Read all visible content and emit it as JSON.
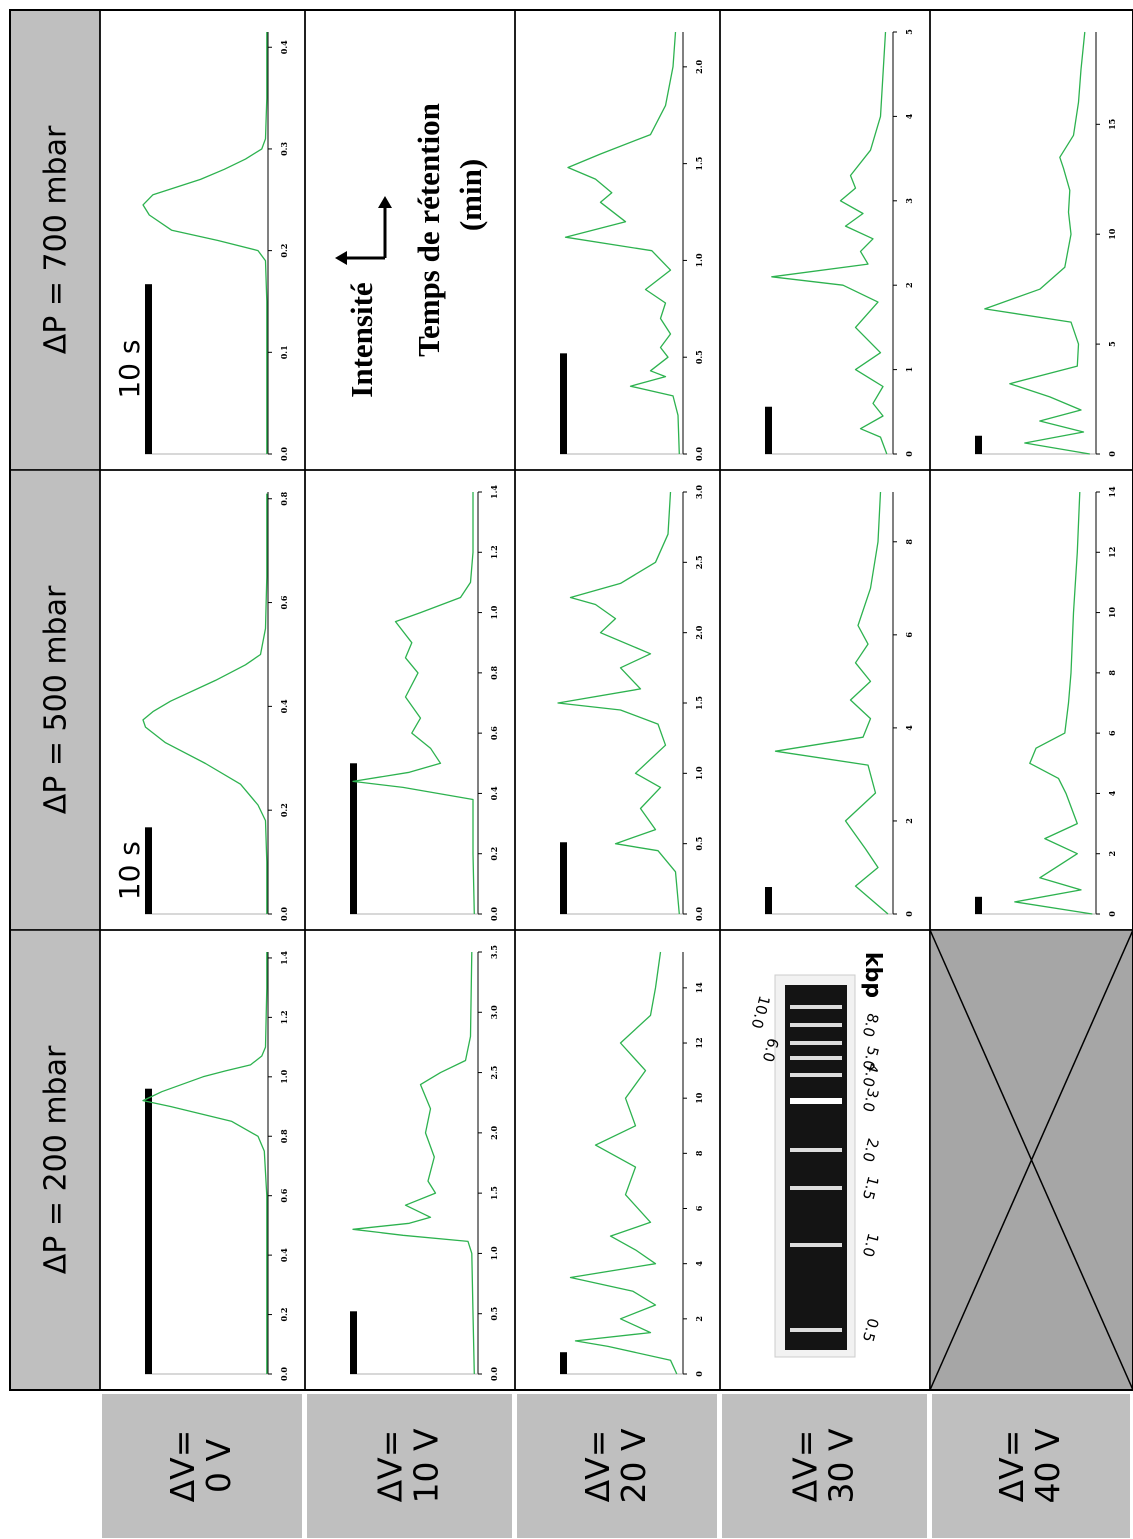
{
  "table": {
    "col_headers": [
      "ΔP = 700 mbar",
      "ΔP = 500 mbar",
      "ΔP = 200 mbar"
    ],
    "row_headers": [
      [
        "ΔV=",
        "0 V"
      ],
      [
        "ΔV=",
        "10 V"
      ],
      [
        "ΔV=",
        "20 V"
      ],
      [
        "ΔV=",
        "30 V"
      ],
      [
        "ΔV=",
        "40 V"
      ]
    ]
  },
  "legend_cell": {
    "intensity": "Intensité",
    "time": "Temps de rétention",
    "unit": "(min)"
  },
  "gel": {
    "unit": "kbp",
    "bands": [
      "0.5",
      "1.0",
      "1.5",
      "2.0",
      "3.0",
      "4.0",
      "5.0",
      "6.0",
      "8.0",
      "10.0"
    ]
  },
  "chart_data": [
    {
      "type": "line",
      "color": "#2db24f",
      "ylim": [
        0,
        100
      ],
      "xlim": [
        0,
        0.415
      ],
      "scale_bar": 0.167,
      "scale_label": "10 s",
      "xticks": [
        {
          "value": 0,
          "label": "0.0"
        },
        0.1,
        0.2,
        0.3,
        0.4
      ],
      "x": [
        0,
        0.05,
        0.1,
        0.15,
        0.19,
        0.2,
        0.21,
        0.22,
        0.235,
        0.245,
        0.255,
        0.27,
        0.28,
        0.29,
        0.3,
        0.31,
        0.35,
        0.4,
        0.415
      ],
      "values": [
        1,
        1,
        1,
        1,
        2,
        8,
        40,
        77,
        95,
        100,
        92,
        54,
        35,
        18,
        5,
        2,
        1,
        1,
        1
      ]
    },
    {
      "type": "line",
      "color": "#2db24f",
      "ylim": [
        0,
        100
      ],
      "xlim": [
        0,
        2.18
      ],
      "scale_bar": 0.52,
      "xticks": [
        {
          "value": 0,
          "label": "0.0"
        },
        0.5,
        {
          "value": 1,
          "label": "1.0"
        },
        1.5,
        {
          "value": 2,
          "label": "2.0"
        }
      ],
      "x": [
        0,
        0.2,
        0.3,
        0.35,
        0.4,
        0.43,
        0.5,
        0.55,
        0.62,
        0.7,
        0.78,
        0.85,
        0.95,
        1.05,
        1.12,
        1.2,
        1.3,
        1.35,
        1.42,
        1.48,
        1.55,
        1.65,
        1.8,
        2.0,
        2.18
      ],
      "values": [
        3,
        4,
        8,
        42,
        14,
        26,
        12,
        18,
        10,
        18,
        14,
        30,
        10,
        25,
        94,
        46,
        66,
        57,
        70,
        92,
        66,
        26,
        14,
        8,
        6
      ]
    },
    {
      "type": "line",
      "color": "#2db24f",
      "ylim": [
        0,
        100
      ],
      "xlim": [
        0,
        5
      ],
      "scale_bar": 0.56,
      "xticks": [
        0,
        1,
        2,
        3,
        4,
        5
      ],
      "x": [
        0,
        0.2,
        0.3,
        0.45,
        0.6,
        0.8,
        1.0,
        1.2,
        1.5,
        1.8,
        2.0,
        2.1,
        2.25,
        2.4,
        2.55,
        2.7,
        2.85,
        3.0,
        3.15,
        3.3,
        3.6,
        4.0,
        4.5,
        5.0
      ],
      "values": [
        5,
        10,
        26,
        8,
        16,
        8,
        30,
        10,
        30,
        12,
        40,
        97,
        20,
        26,
        16,
        38,
        24,
        42,
        30,
        34,
        18,
        10,
        8,
        6
      ]
    },
    {
      "type": "line",
      "color": "#2db24f",
      "ylim": [
        0,
        100
      ],
      "xlim": [
        0,
        19.2
      ],
      "scale_bar": 0.83,
      "xticks": [
        0,
        5,
        10,
        15
      ],
      "x": [
        0,
        0.5,
        1,
        1.5,
        2,
        2.6,
        3.2,
        4,
        5,
        6,
        6.6,
        7.5,
        8.5,
        10,
        11,
        12,
        13,
        13.5,
        14.5,
        16,
        17.5,
        19.2
      ],
      "values": [
        5,
        57,
        10,
        45,
        12,
        37,
        69,
        15,
        14,
        20,
        89,
        45,
        25,
        20,
        22,
        21,
        26,
        29,
        18,
        14,
        12,
        9
      ]
    },
    {
      "type": "line",
      "color": "#2db24f",
      "ylim": [
        0,
        100
      ],
      "xlim": [
        0,
        0.813
      ],
      "scale_bar": 0.167,
      "scale_label": "10 s",
      "xticks": [
        {
          "value": 0,
          "label": "0.0"
        },
        0.2,
        0.4,
        0.6,
        0.8
      ],
      "x": [
        0,
        0.1,
        0.18,
        0.21,
        0.25,
        0.29,
        0.33,
        0.36,
        0.374,
        0.39,
        0.41,
        0.45,
        0.48,
        0.5,
        0.55,
        0.65,
        0.81
      ],
      "values": [
        1,
        1,
        2,
        8,
        22,
        50,
        82,
        98,
        100,
        92,
        78,
        42,
        18,
        6,
        2,
        1,
        1
      ]
    },
    {
      "type": "line",
      "color": "#2db24f",
      "ylim": [
        0,
        100
      ],
      "xlim": [
        0,
        1.4
      ],
      "scale_bar": 0.5,
      "xticks": [
        {
          "value": 0,
          "label": "0.0"
        },
        0.2,
        0.4,
        0.6,
        0.8,
        {
          "value": 1,
          "label": "1.0"
        },
        1.2,
        1.4
      ],
      "x": [
        0,
        0.2,
        0.38,
        0.42,
        0.44,
        0.47,
        0.5,
        0.55,
        0.6,
        0.65,
        0.72,
        0.8,
        0.85,
        0.9,
        0.97,
        1.0,
        1.05,
        1.1,
        1.2,
        1.4
      ],
      "values": [
        3,
        4,
        4,
        60,
        100,
        55,
        30,
        38,
        53,
        46,
        58,
        48,
        58,
        53,
        66,
        46,
        14,
        6,
        4,
        4
      ]
    },
    {
      "type": "line",
      "color": "#2db24f",
      "ylim": [
        0,
        100
      ],
      "xlim": [
        0,
        3
      ],
      "scale_bar": 0.51,
      "xticks": [
        {
          "value": 0,
          "label": "0.0"
        },
        0.5,
        {
          "value": 1,
          "label": "1.0"
        },
        1.5,
        {
          "value": 2,
          "label": "2.0"
        },
        2.5,
        {
          "value": 3,
          "label": "3.0"
        }
      ],
      "x": [
        0,
        0.3,
        0.45,
        0.5,
        0.6,
        0.75,
        0.9,
        1.0,
        1.2,
        1.35,
        1.45,
        1.5,
        1.6,
        1.75,
        1.85,
        2.0,
        2.1,
        2.2,
        2.25,
        2.35,
        2.5,
        2.7,
        3.0
      ],
      "values": [
        3,
        6,
        20,
        54,
        22,
        34,
        18,
        38,
        14,
        20,
        50,
        100,
        34,
        50,
        26,
        66,
        54,
        70,
        90,
        50,
        22,
        12,
        10
      ]
    },
    {
      "type": "line",
      "color": "#2db24f",
      "ylim": [
        0,
        100
      ],
      "xlim": [
        0,
        9.07
      ],
      "scale_bar": 0.58,
      "xticks": [
        0,
        2,
        4,
        6,
        8
      ],
      "x": [
        0,
        0.6,
        1,
        1.4,
        2,
        2.6,
        3.2,
        3.5,
        3.8,
        4.2,
        4.6,
        5,
        5.4,
        5.8,
        6.2,
        7,
        8,
        9.07
      ],
      "values": [
        4,
        30,
        12,
        22,
        38,
        14,
        20,
        94,
        24,
        18,
        34,
        18,
        30,
        20,
        28,
        18,
        12,
        10
      ]
    },
    {
      "type": "line",
      "color": "#2db24f",
      "ylim": [
        0,
        100
      ],
      "xlim": [
        0,
        14
      ],
      "scale_bar": 0.57,
      "xticks": [
        0,
        2,
        4,
        6,
        8,
        10,
        12,
        14
      ],
      "x": [
        0,
        0.4,
        0.8,
        1.2,
        1.6,
        2,
        2.5,
        3,
        4,
        4.5,
        5,
        5.5,
        6,
        7,
        8,
        10,
        12,
        14
      ],
      "values": [
        3,
        65,
        12,
        45,
        30,
        15,
        41,
        15,
        24,
        30,
        53,
        48,
        25,
        22,
        20,
        18,
        15,
        13
      ]
    },
    {
      "type": "line",
      "color": "#2db24f",
      "ylim": [
        0,
        100
      ],
      "xlim": [
        0,
        1.42
      ],
      "scale_bar": 0.96,
      "xticks": [
        {
          "value": 0,
          "label": "0.0"
        },
        0.2,
        0.4,
        0.6,
        0.8,
        {
          "value": 1,
          "label": "1.0"
        },
        1.2,
        1.4
      ],
      "x": [
        0,
        0.3,
        0.6,
        0.75,
        0.8,
        0.85,
        0.9,
        0.92,
        0.95,
        1.0,
        1.02,
        1.04,
        1.07,
        1.1,
        1.3,
        1.42
      ],
      "values": [
        1,
        1,
        1,
        3,
        8,
        29,
        78,
        100,
        85,
        52,
        34,
        14,
        5,
        2,
        1,
        1
      ]
    },
    {
      "type": "line",
      "color": "#2db24f",
      "ylim": [
        0,
        100
      ],
      "xlim": [
        0,
        3.5
      ],
      "scale_bar": 0.52,
      "xticks": [
        {
          "value": 0,
          "label": "0.0"
        },
        0.5,
        {
          "value": 1,
          "label": "1.0"
        },
        1.5,
        {
          "value": 2,
          "label": "2.0"
        },
        2.5,
        {
          "value": 3,
          "label": "3.0"
        },
        3.5
      ],
      "x": [
        0,
        0.5,
        1.0,
        1.1,
        1.15,
        1.2,
        1.25,
        1.3,
        1.4,
        1.5,
        1.6,
        1.8,
        2.0,
        2.2,
        2.4,
        2.5,
        2.6,
        2.8,
        3.5
      ],
      "values": [
        3,
        4,
        5,
        8,
        60,
        100,
        55,
        38,
        58,
        34,
        40,
        35,
        42,
        38,
        46,
        30,
        10,
        6,
        5
      ]
    },
    {
      "type": "line",
      "color": "#2db24f",
      "ylim": [
        0,
        100
      ],
      "xlim": [
        0,
        15.3
      ],
      "scale_bar": 0.79,
      "xticks": [
        0,
        2,
        4,
        6,
        8,
        10,
        12,
        14
      ],
      "x": [
        0,
        0.5,
        1,
        1.2,
        1.5,
        2,
        2.5,
        3,
        3.5,
        4,
        4.5,
        5,
        5.5,
        6.5,
        7.5,
        8.3,
        9,
        10,
        11,
        12,
        13,
        14,
        15.3
      ],
      "values": [
        5,
        10,
        60,
        86,
        26,
        50,
        22,
        40,
        90,
        22,
        38,
        58,
        26,
        46,
        38,
        70,
        38,
        46,
        30,
        50,
        26,
        22,
        18
      ]
    }
  ]
}
